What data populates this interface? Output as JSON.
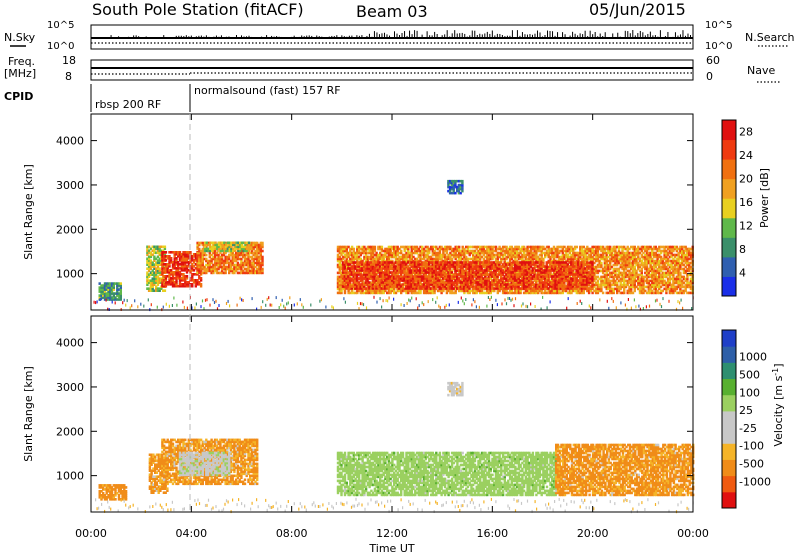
{
  "header": {
    "station_title": "South Pole Station (fitACF)",
    "beam": "Beam 03",
    "date": "05/Jun/2015"
  },
  "params": {
    "nsky_label": "N.Sky",
    "nsky_ticks": [
      "10^5",
      "10^0"
    ],
    "nsearch_label": "N.Search",
    "nsearch_ticks": [
      "10^5",
      "10^0"
    ],
    "freq_label": "Freq.",
    "freq_unit": "[MHz]",
    "freq_ticks": [
      18,
      8
    ],
    "nave_label": "Nave",
    "nave_ticks": [
      60,
      0
    ],
    "cpid_label": "CPID",
    "programs": [
      {
        "name": "rbsp 200 RF",
        "start_hr": 0,
        "end_hr": 3.95
      },
      {
        "name": "normalsound (fast) 157 RF",
        "start_hr": 3.95,
        "end_hr": 24
      }
    ]
  },
  "colors": {
    "power_scale": [
      "#1a2fe8",
      "#2f5fb0",
      "#3a8f6a",
      "#5fb84a",
      "#e8d020",
      "#f0a020",
      "#f07010",
      "#ef3a10",
      "#e01010"
    ],
    "velocity_scale": [
      "#e01010",
      "#f05a10",
      "#f08c18",
      "#f5b428",
      "#c8c8c8",
      "#c8c8c8",
      "#9bd060",
      "#58b030",
      "#2e8f70",
      "#2e5fa8",
      "#1f3fc8"
    ]
  },
  "chart_data": [
    {
      "type": "heatmap",
      "title": "Power",
      "ylabel": "Slant Range [km]",
      "xlabel": "Time UT",
      "x_ticks": [
        "00:00",
        "04:00",
        "08:00",
        "12:00",
        "16:00",
        "20:00",
        "00:00"
      ],
      "x_range_hr": [
        0,
        24
      ],
      "y_ticks": [
        1000,
        2000,
        3000,
        4000
      ],
      "ylim": [
        180,
        4600
      ],
      "colorbar": {
        "label": "Power [dB]",
        "ticks": [
          4,
          8,
          12,
          16,
          20,
          24,
          28
        ],
        "range": [
          0,
          30
        ]
      },
      "regions": [
        {
          "t0": 0.3,
          "t1": 1.2,
          "r0": 400,
          "r1": 800,
          "value": 9
        },
        {
          "t0": 2.2,
          "t1": 2.9,
          "r0": 600,
          "r1": 1600,
          "value": 14
        },
        {
          "t0": 2.8,
          "t1": 4.4,
          "r0": 700,
          "r1": 1500,
          "value": 26
        },
        {
          "t0": 4.2,
          "t1": 6.8,
          "r0": 1000,
          "r1": 1700,
          "value": 21
        },
        {
          "t0": 4.5,
          "t1": 6.3,
          "r0": 1500,
          "r1": 1700,
          "value": 14
        },
        {
          "t0": 9.8,
          "t1": 24.0,
          "r0": 550,
          "r1": 1600,
          "value": 20
        },
        {
          "t0": 10.0,
          "t1": 20.0,
          "r0": 650,
          "r1": 1250,
          "value": 25
        },
        {
          "t0": 14.2,
          "t1": 14.8,
          "r0": 2800,
          "r1": 3100,
          "value": 6
        }
      ]
    },
    {
      "type": "heatmap",
      "title": "Velocity",
      "ylabel": "Slant Range [km]",
      "xlabel": "Time UT",
      "x_ticks": [
        "00:00",
        "04:00",
        "08:00",
        "12:00",
        "16:00",
        "20:00",
        "00:00"
      ],
      "x_range_hr": [
        0,
        24
      ],
      "y_ticks": [
        1000,
        2000,
        3000,
        4000
      ],
      "ylim": [
        180,
        4600
      ],
      "colorbar": {
        "label": "Velocity [m s^-1]",
        "ticks": [
          -1000,
          -500,
          -100,
          -25,
          25,
          100,
          500,
          1000
        ]
      },
      "regions": [
        {
          "t0": 0.3,
          "t1": 1.4,
          "r0": 450,
          "r1": 800,
          "value": -200
        },
        {
          "t0": 2.3,
          "t1": 3.0,
          "r0": 600,
          "r1": 1500,
          "value": -150
        },
        {
          "t0": 2.8,
          "t1": 6.6,
          "r0": 800,
          "r1": 1800,
          "value": -120
        },
        {
          "t0": 3.5,
          "t1": 5.5,
          "r0": 1000,
          "r1": 1500,
          "value": 60
        },
        {
          "t0": 9.8,
          "t1": 18.5,
          "r0": 550,
          "r1": 1500,
          "value": 300
        },
        {
          "t0": 18.5,
          "t1": 24.0,
          "r0": 550,
          "r1": 1700,
          "value": -150
        },
        {
          "t0": 14.2,
          "t1": 14.8,
          "r0": 2800,
          "r1": 3100,
          "value": 10
        }
      ]
    }
  ]
}
